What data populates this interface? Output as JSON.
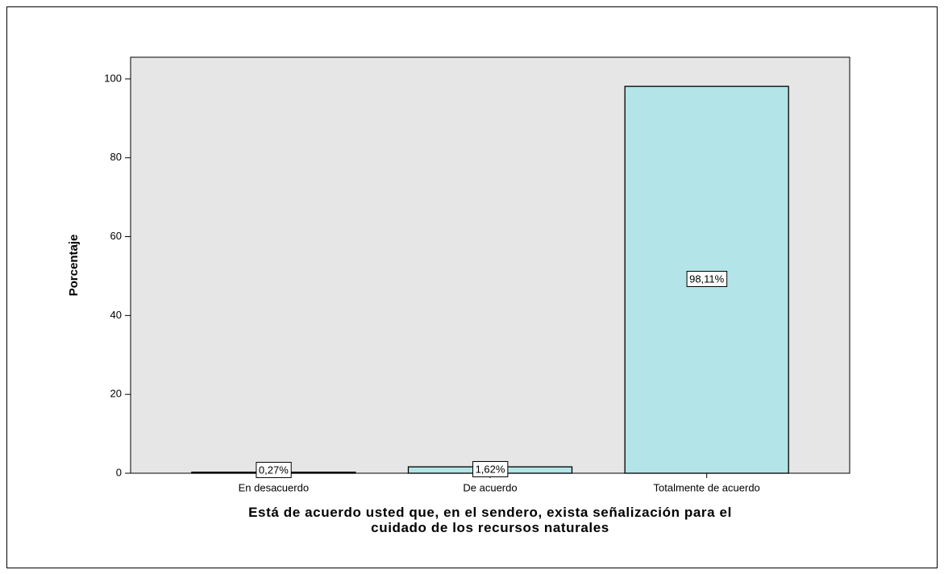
{
  "chart_data": {
    "type": "bar",
    "categories": [
      "En desacuerdo",
      "De acuerdo",
      "Totalmente de acuerdo"
    ],
    "values": [
      0.27,
      1.62,
      98.11
    ],
    "value_labels": [
      "0,27%",
      "1,62%",
      "98,11%"
    ],
    "color": "#b3e4e7",
    "ylabel": "Porcentaje",
    "xlabel": "Está de acuerdo usted que, en el sendero, exista señalización para el\ncuidado de los recursos naturales",
    "ylim": [
      0,
      105.5
    ],
    "yticks": [
      0,
      20,
      40,
      60,
      80,
      100
    ],
    "grid": false
  }
}
